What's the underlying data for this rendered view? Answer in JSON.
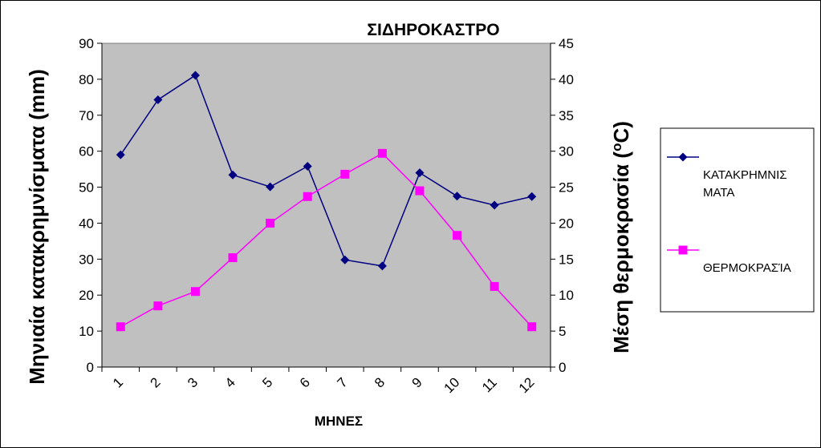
{
  "chart_data": {
    "type": "line",
    "title": "ΣΙΔΗΡΟΚΑΣΤΡΟ",
    "xlabel": "ΜΗΝΕΣ",
    "ylabel_left": "Μηνιαία κατακρημνίσματα (mm)",
    "ylabel_right_main": "Μέση θερμοκρασία (",
    "ylabel_right_sup": "o",
    "ylabel_right_end": "C)",
    "categories": [
      "1",
      "2",
      "3",
      "4",
      "5",
      "6",
      "7",
      "8",
      "9",
      "10",
      "11",
      "12"
    ],
    "ylim_left": [
      0,
      90
    ],
    "yticks_left": [
      0,
      10,
      20,
      30,
      40,
      50,
      60,
      70,
      80,
      90
    ],
    "ylim_right": [
      0,
      45
    ],
    "yticks_right": [
      0,
      5,
      10,
      15,
      20,
      25,
      30,
      35,
      40,
      45
    ],
    "plot_background": "#c0c0c0",
    "grid": false,
    "legend_position": "right",
    "series": [
      {
        "name": "ΚΑΤΑΚΡΗΜΝΙΣ ΜΑΤΑ",
        "legend_lines": [
          "ΚΑΤΑΚΡΗΜΝΙΣ",
          "ΜΑΤΑ"
        ],
        "axis": "left",
        "color": "#000080",
        "marker": "diamond",
        "values": [
          59,
          74.3,
          81.1,
          53.4,
          50.1,
          55.8,
          29.8,
          28.1,
          54.0,
          47.5,
          45.0,
          47.4
        ]
      },
      {
        "name": "ΘΕΡΜΟΚΡΑΣΊΑ",
        "legend_lines": [
          "ΘΕΡΜΟΚΡΑΣΊΑ"
        ],
        "axis": "right",
        "color": "#ff00ff",
        "marker": "square",
        "values": [
          5.6,
          8.5,
          10.5,
          15.2,
          20.0,
          23.7,
          26.8,
          29.7,
          24.5,
          18.3,
          11.2,
          5.6
        ]
      }
    ]
  }
}
